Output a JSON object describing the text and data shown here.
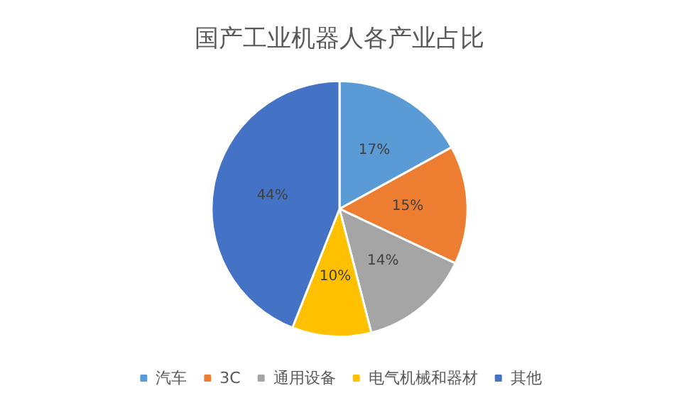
{
  "chart_data": {
    "type": "pie",
    "title": "国产工业机器人各产业占比",
    "categories": [
      "汽车",
      "3C",
      "通用设备",
      "电气机械和器材",
      "其他"
    ],
    "values": [
      17,
      15,
      14,
      10,
      44
    ],
    "colors": [
      "#5b9bd5",
      "#ed7d31",
      "#a5a5a5",
      "#ffc000",
      "#4472c4"
    ],
    "value_labels": [
      "17%",
      "15%",
      "14%",
      "10%",
      "44%"
    ],
    "legend": "bottom"
  }
}
